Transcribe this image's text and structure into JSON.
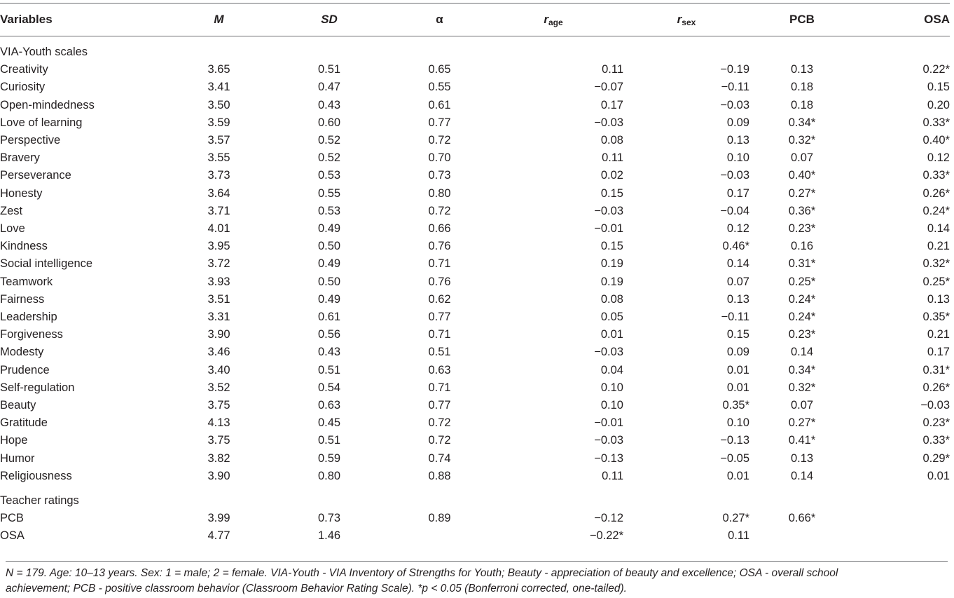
{
  "table": {
    "headers": {
      "variables": "Variables",
      "m": "M",
      "sd": "SD",
      "alpha": "α",
      "r_age_main": "r",
      "r_age_sub": "age",
      "r_sex_main": "r",
      "r_sex_sub": "sex",
      "pcb": "PCB",
      "osa": "OSA"
    },
    "section_via": "VIA-Youth scales",
    "via_rows": [
      {
        "name": "Creativity",
        "m": "3.65",
        "sd": "0.51",
        "alpha": "0.65",
        "rage": "0.11",
        "rsex": "−0.19",
        "pcb": "0.13",
        "osa": "0.22*"
      },
      {
        "name": "Curiosity",
        "m": "3.41",
        "sd": "0.47",
        "alpha": "0.55",
        "rage": "−0.07",
        "rsex": "−0.11",
        "pcb": "0.18",
        "osa": "0.15"
      },
      {
        "name": "Open-mindedness",
        "m": "3.50",
        "sd": "0.43",
        "alpha": "0.61",
        "rage": "0.17",
        "rsex": "−0.03",
        "pcb": "0.18",
        "osa": "0.20"
      },
      {
        "name": "Love of learning",
        "m": "3.59",
        "sd": "0.60",
        "alpha": "0.77",
        "rage": "−0.03",
        "rsex": "0.09",
        "pcb": "0.34*",
        "osa": "0.33*"
      },
      {
        "name": "Perspective",
        "m": "3.57",
        "sd": "0.52",
        "alpha": "0.72",
        "rage": "0.08",
        "rsex": "0.13",
        "pcb": "0.32*",
        "osa": "0.40*"
      },
      {
        "name": "Bravery",
        "m": "3.55",
        "sd": "0.52",
        "alpha": "0.70",
        "rage": "0.11",
        "rsex": "0.10",
        "pcb": "0.07",
        "osa": "0.12"
      },
      {
        "name": "Perseverance",
        "m": "3.73",
        "sd": "0.53",
        "alpha": "0.73",
        "rage": "0.02",
        "rsex": "−0.03",
        "pcb": "0.40*",
        "osa": "0.33*"
      },
      {
        "name": "Honesty",
        "m": "3.64",
        "sd": "0.55",
        "alpha": "0.80",
        "rage": "0.15",
        "rsex": "0.17",
        "pcb": "0.27*",
        "osa": "0.26*"
      },
      {
        "name": "Zest",
        "m": "3.71",
        "sd": "0.53",
        "alpha": "0.72",
        "rage": "−0.03",
        "rsex": "−0.04",
        "pcb": "0.36*",
        "osa": "0.24*"
      },
      {
        "name": "Love",
        "m": "4.01",
        "sd": "0.49",
        "alpha": "0.66",
        "rage": "−0.01",
        "rsex": "0.12",
        "pcb": "0.23*",
        "osa": "0.14"
      },
      {
        "name": "Kindness",
        "m": "3.95",
        "sd": "0.50",
        "alpha": "0.76",
        "rage": "0.15",
        "rsex": "0.46*",
        "pcb": "0.16",
        "osa": "0.21"
      },
      {
        "name": "Social intelligence",
        "m": "3.72",
        "sd": "0.49",
        "alpha": "0.71",
        "rage": "0.19",
        "rsex": "0.14",
        "pcb": "0.31*",
        "osa": "0.32*"
      },
      {
        "name": "Teamwork",
        "m": "3.93",
        "sd": "0.50",
        "alpha": "0.76",
        "rage": "0.19",
        "rsex": "0.07",
        "pcb": "0.25*",
        "osa": "0.25*"
      },
      {
        "name": "Fairness",
        "m": "3.51",
        "sd": "0.49",
        "alpha": "0.62",
        "rage": "0.08",
        "rsex": "0.13",
        "pcb": "0.24*",
        "osa": "0.13"
      },
      {
        "name": "Leadership",
        "m": "3.31",
        "sd": "0.61",
        "alpha": "0.77",
        "rage": "0.05",
        "rsex": "−0.11",
        "pcb": "0.24*",
        "osa": "0.35*"
      },
      {
        "name": "Forgiveness",
        "m": "3.90",
        "sd": "0.56",
        "alpha": "0.71",
        "rage": "0.01",
        "rsex": "0.15",
        "pcb": "0.23*",
        "osa": "0.21"
      },
      {
        "name": "Modesty",
        "m": "3.46",
        "sd": "0.43",
        "alpha": "0.51",
        "rage": "−0.03",
        "rsex": "0.09",
        "pcb": "0.14",
        "osa": "0.17"
      },
      {
        "name": "Prudence",
        "m": "3.40",
        "sd": "0.51",
        "alpha": "0.63",
        "rage": "0.04",
        "rsex": "0.01",
        "pcb": "0.34*",
        "osa": "0.31*"
      },
      {
        "name": "Self-regulation",
        "m": "3.52",
        "sd": "0.54",
        "alpha": "0.71",
        "rage": "0.10",
        "rsex": "0.01",
        "pcb": "0.32*",
        "osa": "0.26*"
      },
      {
        "name": "Beauty",
        "m": "3.75",
        "sd": "0.63",
        "alpha": "0.77",
        "rage": "0.10",
        "rsex": "0.35*",
        "pcb": "0.07",
        "osa": "−0.03"
      },
      {
        "name": "Gratitude",
        "m": "4.13",
        "sd": "0.45",
        "alpha": "0.72",
        "rage": "−0.01",
        "rsex": "0.10",
        "pcb": "0.27*",
        "osa": "0.23*"
      },
      {
        "name": "Hope",
        "m": "3.75",
        "sd": "0.51",
        "alpha": "0.72",
        "rage": "−0.03",
        "rsex": "−0.13",
        "pcb": "0.41*",
        "osa": "0.33*"
      },
      {
        "name": "Humor",
        "m": "3.82",
        "sd": "0.59",
        "alpha": "0.74",
        "rage": "−0.13",
        "rsex": "−0.05",
        "pcb": "0.13",
        "osa": "0.29*"
      },
      {
        "name": "Religiousness",
        "m": "3.90",
        "sd": "0.80",
        "alpha": "0.88",
        "rage": "0.11",
        "rsex": "0.01",
        "pcb": "0.14",
        "osa": "0.01"
      }
    ],
    "section_teacher": "Teacher ratings",
    "teacher_rows": [
      {
        "name": "PCB",
        "m": "3.99",
        "sd": "0.73",
        "alpha": "0.89",
        "rage": "−0.12",
        "rsex": "0.27*",
        "pcb": "0.66*",
        "osa": ""
      },
      {
        "name": "OSA",
        "m": "4.77",
        "sd": "1.46",
        "alpha": "",
        "rage": "−0.22*",
        "rsex": "0.11",
        "pcb": "",
        "osa": ""
      }
    ]
  },
  "note": {
    "line1": "N = 179. Age: 10–13 years. Sex: 1 = male; 2 = female. VIA-Youth - VIA Inventory of Strengths for Youth; Beauty - appreciation of beauty and excellence; OSA - overall school",
    "line2": "achievement; PCB - positive classroom behavior (Classroom Behavior Rating Scale). *p < 0.05 (Bonferroni corrected, one-tailed)."
  }
}
